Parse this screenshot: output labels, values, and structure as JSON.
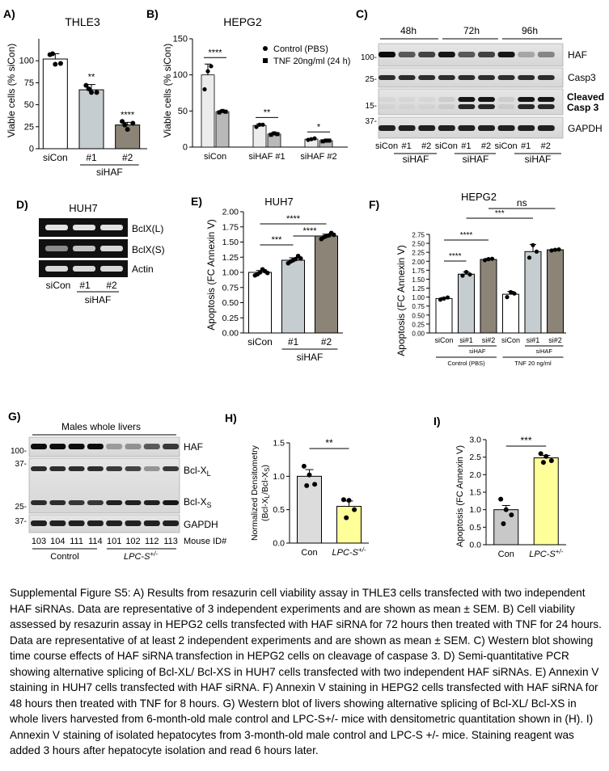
{
  "panels": {
    "A": {
      "letter": "A)",
      "title": "THLE3",
      "chart_data": {
        "type": "bar",
        "title": "THLE3",
        "ylabel": "Viable cells (% siCon)",
        "ylim": [
          0,
          125
        ],
        "yticks": [
          0,
          25,
          50,
          75,
          100
        ],
        "categories": [
          "siCon",
          "#1",
          "#2"
        ],
        "group_label": "siHAF",
        "values": [
          102,
          67,
          27
        ],
        "errors": [
          6,
          6,
          3
        ],
        "points": [
          [
            107,
            96,
            97,
            108
          ],
          [
            72,
            64,
            64,
            68
          ],
          [
            31,
            22,
            29,
            27
          ]
        ],
        "significance": [
          "",
          "**",
          "****"
        ],
        "colors": [
          "#ffffff",
          "#c6cdd0",
          "#8b8477"
        ]
      }
    },
    "B": {
      "letter": "B)",
      "title": "HEPG2",
      "chart_data": {
        "type": "bar",
        "title": "HEPG2",
        "ylabel": "Viable cells (% siCon)",
        "ylim": [
          0,
          150
        ],
        "yticks": [
          0,
          50,
          100,
          150
        ],
        "categories": [
          "siCon",
          "siHAF #1",
          "siHAF #2"
        ],
        "series": [
          {
            "name": "Control (PBS)",
            "values": [
              100,
              30,
              11
            ],
            "errors": [
              15,
              2,
              1
            ],
            "points": [
              [
                80,
                105,
                112
              ],
              [
                28,
                31,
                31
              ],
              [
                10,
                11,
                12
              ]
            ],
            "marker": "circle"
          },
          {
            "name": "TNF 20ng/ml (24 h)",
            "values": [
              49,
              18,
              9
            ],
            "errors": [
              2,
              2,
              1
            ],
            "points": [
              [
                48,
                50,
                49
              ],
              [
                17,
                19,
                18
              ],
              [
                8,
                9,
                9
              ]
            ],
            "marker": "square"
          }
        ],
        "significance": [
          "****",
          "**",
          "*"
        ],
        "colors": [
          "#ececec",
          "#b9b9b9"
        ],
        "legend_position": "top-right"
      }
    },
    "C": {
      "letter": "C)",
      "time_labels": [
        "48h",
        "72h",
        "96h"
      ],
      "row_labels": [
        "HAF",
        "Casp3",
        "Cleaved",
        "Casp 3",
        "GAPDH"
      ],
      "marker_labels": [
        "100-",
        "25-",
        "15-",
        "37-"
      ],
      "lane_labels": [
        "siCon",
        "#1",
        "#2",
        "siCon",
        "#1",
        "#2",
        "siCon",
        "#1",
        "#2"
      ],
      "group_label": "siHAF"
    },
    "D": {
      "letter": "D)",
      "title": "HUH7",
      "row_labels": [
        "BclX(L)",
        "BclX(S)",
        "Actin"
      ],
      "lane_labels": [
        "siCon",
        "#1",
        "#2"
      ],
      "group_label": "siHAF"
    },
    "E": {
      "letter": "E)",
      "title": "HUH7",
      "chart_data": {
        "type": "bar",
        "title": "HUH7",
        "ylabel": "Apoptosis (FC Annexin V)",
        "ylim": [
          0,
          2.0
        ],
        "yticks": [
          "0.00",
          "0.25",
          "0.50",
          "0.75",
          "1.00",
          "1.25",
          "1.50",
          "1.75",
          "2.00"
        ],
        "categories": [
          "siCon",
          "#1",
          "#2"
        ],
        "group_label": "siHAF",
        "values": [
          1.0,
          1.2,
          1.6
        ],
        "errors": [
          0.03,
          0.04,
          0.03
        ],
        "points": [
          [
            0.95,
            1.0,
            1.02,
            0.97,
            1.05,
            0.99
          ],
          [
            1.15,
            1.2,
            1.27,
            1.18,
            1.22,
            1.23
          ],
          [
            1.55,
            1.6,
            1.65,
            1.58,
            1.61,
            1.62
          ]
        ],
        "significance": [
          {
            "pair": [
              0,
              1
            ],
            "label": "***"
          },
          {
            "pair": [
              1,
              2
            ],
            "label": "****"
          },
          {
            "pair": [
              0,
              2
            ],
            "label": "****"
          }
        ],
        "colors": [
          "#ffffff",
          "#c6cdd0",
          "#8b8477"
        ]
      }
    },
    "F": {
      "letter": "F)",
      "title": "HEPG2",
      "chart_data": {
        "type": "bar",
        "title": "HEPG2",
        "ylabel": "Apoptosis (FC Annexin V)",
        "ylim": [
          0,
          2.75
        ],
        "yticks": [
          "0.00",
          "0.25",
          "0.50",
          "0.75",
          "1.00",
          "1.25",
          "1.50",
          "1.75",
          "2.00",
          "2.25",
          "2.50",
          "2.75"
        ],
        "categories": [
          "siCon",
          "si#1",
          "si#2",
          "siCon",
          "si#1",
          "si#2"
        ],
        "sub_group_label": "siHAF",
        "groups": [
          "Control (PBS)",
          "TNF 20 ng/ml"
        ],
        "values": [
          0.96,
          1.64,
          2.05,
          1.08,
          2.27,
          2.32
        ],
        "errors": [
          0.03,
          0.06,
          0.03,
          0.08,
          0.2,
          0.02
        ],
        "points": [
          [
            0.93,
            0.96,
            0.99
          ],
          [
            1.6,
            1.7,
            1.63
          ],
          [
            2.03,
            2.06,
            2.07
          ],
          [
            1.0,
            1.14,
            1.1
          ],
          [
            2.1,
            2.45,
            2.27
          ],
          [
            2.3,
            2.32,
            2.33
          ]
        ],
        "significance": [
          {
            "pair": [
              0,
              1
            ],
            "label": "****"
          },
          {
            "pair": [
              0,
              2
            ],
            "label": "****"
          },
          {
            "pair": [
              1,
              4
            ],
            "label": "***"
          },
          {
            "pair": [
              2,
              5
            ],
            "label": "ns"
          }
        ],
        "colors": [
          "#ffffff",
          "#c6cdd0",
          "#8b8477",
          "#ffffff",
          "#c6cdd0",
          "#8b8477"
        ]
      }
    },
    "G": {
      "letter": "G)",
      "top_label": "Males whole livers",
      "row_labels": [
        "HAF",
        "Bcl-X",
        "L",
        "Bcl-X",
        "S",
        "GAPDH"
      ],
      "marker_labels": [
        "100-",
        "37-",
        "25-",
        "37-"
      ],
      "mouse_ids": [
        "103",
        "104",
        "111",
        "114",
        "101",
        "102",
        "112",
        "113"
      ],
      "mouse_id_label": "Mouse ID#",
      "group_labels": [
        "Control",
        "LPC-S",
        "+/-"
      ]
    },
    "H": {
      "letter": "H)",
      "chart_data": {
        "type": "bar",
        "ylabel": "Normalized Densitometry",
        "ylabel2": "(Bcl-X",
        "ylabel2_sub_L": "L",
        "ylabel2_mid": "/Bcl-X",
        "ylabel2_sub_S": "S",
        "ylabel2_end": ")",
        "ylim": [
          0,
          1.5
        ],
        "yticks": [
          "0.0",
          "0.5",
          "1.0",
          "1.5"
        ],
        "categories": [
          "Con",
          "LPC-S"
        ],
        "category_sup": "+/-",
        "values": [
          1.0,
          0.55
        ],
        "errors": [
          0.1,
          0.08
        ],
        "points": [
          [
            1.15,
            1.02,
            0.88,
            0.86
          ],
          [
            0.65,
            0.64,
            0.5,
            0.38
          ]
        ],
        "significance": "**",
        "colors": [
          "#dcdcdc",
          "#ffff99"
        ]
      }
    },
    "I": {
      "letter": "I)",
      "chart_data": {
        "type": "bar",
        "ylabel": "Apoptosis (FC Annexin V)",
        "ylim": [
          0,
          3.0
        ],
        "yticks": [
          "0.0",
          "0.5",
          "1.0",
          "1.5",
          "2.0",
          "2.5",
          "3.0"
        ],
        "categories": [
          "Con",
          "LPC-S"
        ],
        "category_sup": "+/-",
        "values": [
          1.0,
          2.48
        ],
        "errors": [
          0.12,
          0.07
        ],
        "points": [
          [
            1.3,
            1.0,
            0.85,
            0.6
          ],
          [
            2.6,
            2.52,
            2.4,
            2.35
          ]
        ],
        "significance": "***",
        "colors": [
          "#c8c8c8",
          "#ffff99"
        ]
      }
    }
  },
  "caption": "Supplemental Figure S5: A) Results from resazurin cell viability assay in THLE3 cells transfected with two independent HAF siRNAs. Data are representative of 3 independent experiments and are shown as mean ± SEM. B) Cell viability assessed by resazurin assay in HEPG2 cells transfected with HAF siRNA for 72 hours then treated with TNF for 24 hours. Data are representative of at least 2 independent experiments and are shown as mean ± SEM. C) Western blot showing time course effects of HAF siRNA transfection in HEPG2 cells on cleavage of caspase 3. D) Semi-quantitative PCR showing alternative splicing of Bcl-XL/ Bcl-XS in HUH7 cells transfected with two independent HAF siRNAs. E) Annexin V staining in HUH7 cells transfected with HAF siRNA. F) Annexin V staining in HEPG2 cells transfected with HAF siRNA for 48 hours then treated with TNF for 8 hours. G) Western blot of livers showing alternative splicing of Bcl-XL/ Bcl-XS in whole livers harvested from 6-month-old male control and LPC-S+/- mice with densitometric quantitation shown in (H). I) Annexin V staining of isolated hepatocytes from 3-month-old male control and LPC-S +/- mice. Staining reagent was added 3 hours after hepatocyte isolation and read 6 hours later."
}
